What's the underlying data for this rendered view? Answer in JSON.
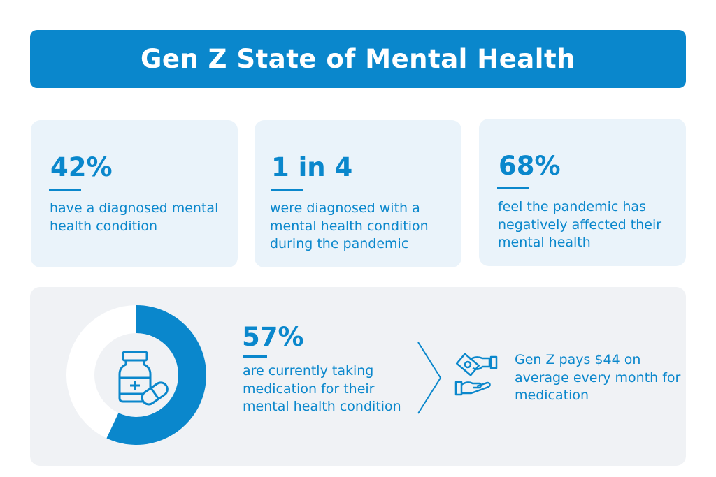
{
  "title": "Gen Z State of Mental Health",
  "colors": {
    "accent": "#0a87cc",
    "card_bg": "#eaf3fa",
    "panel_bg": "#f0f2f5"
  },
  "stats": [
    {
      "value": "42%",
      "text": "have a diagnosed mental health condition"
    },
    {
      "value": "1 in 4",
      "text": "were diagnosed with a mental health condition during the pandemic"
    },
    {
      "value": "68%",
      "text": "feel the pandemic has negatively affected their mental health"
    }
  ],
  "medication": {
    "value": "57%",
    "percent": 57,
    "text": "are currently taking medication for their mental health condition",
    "icon": "medicine-bottle-pill-icon"
  },
  "cost": {
    "text": "Gen Z pays $44 on average every month for medication",
    "icon": "hand-giving-money-icon"
  }
}
